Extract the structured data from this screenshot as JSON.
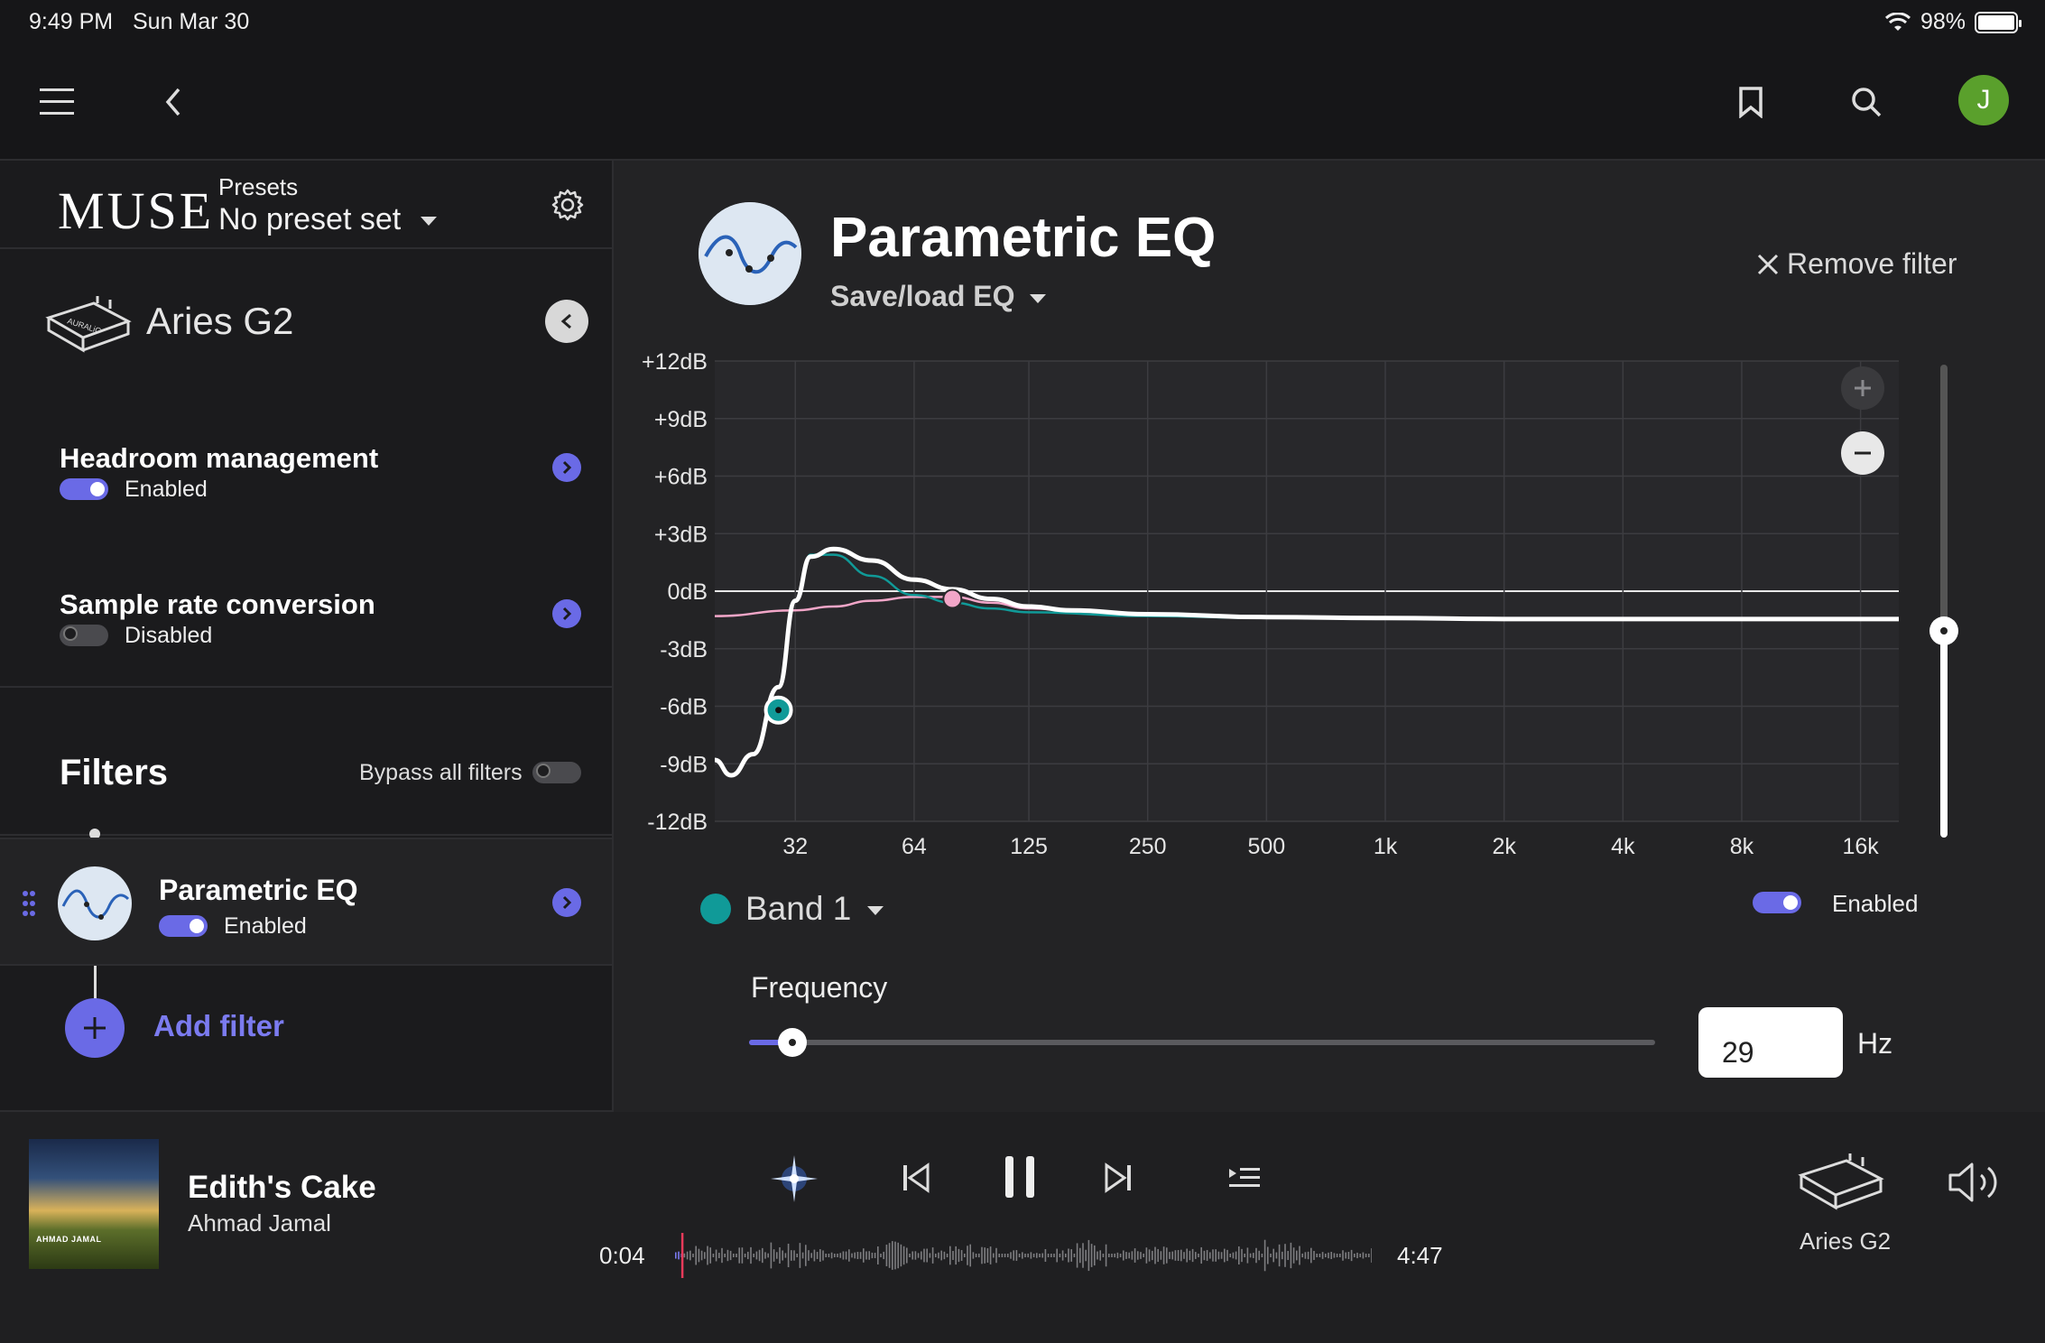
{
  "status_bar": {
    "time": "9:49 PM",
    "date": "Sun Mar 30",
    "battery": "98%"
  },
  "topnav": {
    "avatar_initial": "J"
  },
  "muse": {
    "logo": "MUSE",
    "presets_label": "Presets",
    "preset_value": "No preset set",
    "device_name": "Aries G2",
    "headroom": {
      "title": "Headroom management",
      "status": "Enabled",
      "on": true
    },
    "sample_rate": {
      "title": "Sample rate conversion",
      "status": "Disabled",
      "on": false
    },
    "filters_heading": "Filters",
    "bypass_label": "Bypass all filters",
    "filter_item": {
      "name": "Parametric EQ",
      "status": "Enabled",
      "on": true
    },
    "add_filter": "Add filter"
  },
  "eq": {
    "title": "Parametric EQ",
    "save_load": "Save/load EQ",
    "remove": "Remove filter",
    "band_label": "Band 1",
    "band_enabled": "Enabled",
    "band_color": "#109a98",
    "band2_color": "#f2a6c8",
    "frequency_label": "Frequency",
    "frequency_value": "29",
    "frequency_unit": "Hz",
    "preamp_level_db": -1.5
  },
  "chart_data": {
    "type": "line",
    "y_ticks": [
      "+12dB",
      "+9dB",
      "+6dB",
      "+3dB",
      "0dB",
      "-3dB",
      "-6dB",
      "-9dB",
      "-12dB"
    ],
    "x_ticks": [
      "32",
      "64",
      "125",
      "250",
      "500",
      "1k",
      "2k",
      "4k",
      "8k",
      "16k"
    ],
    "ylim": [
      -12,
      12
    ],
    "xlim_hz": [
      20,
      20000
    ],
    "x_scale": "log",
    "series": [
      {
        "x": [
          20,
          22,
          25,
          29,
          32,
          35,
          40,
          50,
          64,
          80,
          100,
          125,
          160,
          250,
          500,
          1000,
          2000,
          4000,
          8000,
          16000,
          20000
        ],
        "y": [
          -8.8,
          -9.6,
          -8.5,
          -5,
          -0.5,
          1.8,
          2.2,
          1.6,
          0.6,
          0.1,
          -0.4,
          -0.8,
          -1.0,
          -1.2,
          -1.35,
          -1.4,
          -1.45,
          -1.45,
          -1.45,
          -1.45,
          -1.45
        ]
      },
      {
        "x": [
          20,
          32,
          40,
          50,
          64,
          80,
          100,
          125,
          160,
          250,
          500,
          1000,
          20000
        ],
        "y": [
          -1.3,
          -1.0,
          -0.8,
          -0.5,
          -0.3,
          -0.3,
          -0.6,
          -0.9,
          -1.0,
          -1.2,
          -1.35,
          -1.4,
          -1.45
        ]
      },
      {
        "x": [
          32,
          35,
          40,
          50,
          64,
          80,
          100,
          125,
          250,
          500,
          20000
        ],
        "y": [
          -0.5,
          1.9,
          1.9,
          0.8,
          -0.2,
          -0.6,
          -0.9,
          -1.1,
          -1.3,
          -1.4,
          -1.45
        ]
      }
    ],
    "points": [
      {
        "name": "Band 1",
        "x": 29,
        "y": -6.2
      },
      {
        "name": "Band 2",
        "x": 80,
        "y": -0.4
      }
    ]
  },
  "player": {
    "title": "Edith's Cake",
    "artist": "Ahmad Jamal",
    "album_caption": "AHMAD JAMAL",
    "time_now": "0:04",
    "time_total": "4:47",
    "output_device": "Aries G2",
    "progress": 0.014
  }
}
